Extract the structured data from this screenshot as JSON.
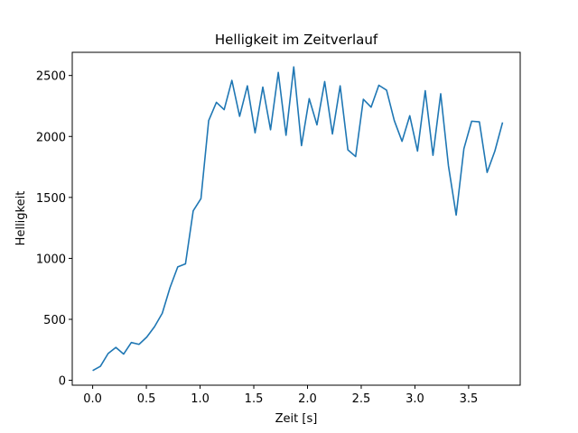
{
  "chart_data": {
    "type": "line",
    "title": "Helligkeit im Zeitverlauf",
    "xlabel": "Zeit [s]",
    "ylabel": "Helligkeit",
    "xlim": [
      -0.19,
      3.98
    ],
    "ylim": [
      -40,
      2690
    ],
    "xticks": [
      0.0,
      0.5,
      1.0,
      1.5,
      2.0,
      2.5,
      3.0,
      3.5
    ],
    "xtick_labels": [
      "0.0",
      "0.5",
      "1.0",
      "1.5",
      "2.0",
      "2.5",
      "3.0",
      "3.5"
    ],
    "yticks": [
      0,
      500,
      1000,
      1500,
      2000,
      2500
    ],
    "ytick_labels": [
      "0",
      "500",
      "1000",
      "1500",
      "2000",
      "2500"
    ],
    "grid": false,
    "color": "#1f77b4",
    "series": [
      {
        "name": "Helligkeit",
        "x": [
          0.0,
          0.072,
          0.144,
          0.216,
          0.288,
          0.36,
          0.432,
          0.504,
          0.576,
          0.648,
          0.72,
          0.792,
          0.864,
          0.936,
          1.008,
          1.08,
          1.152,
          1.224,
          1.296,
          1.368,
          1.44,
          1.512,
          1.584,
          1.656,
          1.728,
          1.8,
          1.872,
          1.944,
          2.016,
          2.088,
          2.16,
          2.232,
          2.304,
          2.376,
          2.448,
          2.52,
          2.592,
          2.664,
          2.736,
          2.808,
          2.88,
          2.952,
          3.024,
          3.096,
          3.168,
          3.24,
          3.312,
          3.384,
          3.456,
          3.528,
          3.6,
          3.672,
          3.744,
          3.816
        ],
        "values": [
          80,
          115,
          220,
          270,
          215,
          310,
          295,
          355,
          440,
          550,
          760,
          930,
          955,
          1390,
          1490,
          2130,
          2280,
          2220,
          2460,
          2165,
          2415,
          2030,
          2405,
          2055,
          2525,
          2010,
          2570,
          1925,
          2310,
          2095,
          2450,
          2020,
          2415,
          1890,
          1835,
          2305,
          2240,
          2420,
          2380,
          2130,
          1960,
          2170,
          1880,
          2375,
          1845,
          2350,
          1760,
          1355,
          1900,
          2125,
          2120,
          1705,
          1880,
          2115
        ]
      }
    ]
  }
}
